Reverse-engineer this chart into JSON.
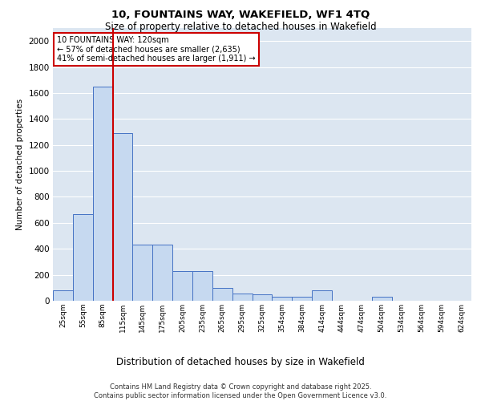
{
  "title_line1": "10, FOUNTAINS WAY, WAKEFIELD, WF1 4TQ",
  "title_line2": "Size of property relative to detached houses in Wakefield",
  "xlabel": "Distribution of detached houses by size in Wakefield",
  "ylabel": "Number of detached properties",
  "categories": [
    "25sqm",
    "55sqm",
    "85sqm",
    "115sqm",
    "145sqm",
    "175sqm",
    "205sqm",
    "235sqm",
    "265sqm",
    "295sqm",
    "325sqm",
    "354sqm",
    "384sqm",
    "414sqm",
    "444sqm",
    "474sqm",
    "504sqm",
    "534sqm",
    "564sqm",
    "594sqm",
    "624sqm"
  ],
  "values": [
    80,
    670,
    1650,
    1290,
    430,
    430,
    230,
    230,
    100,
    55,
    50,
    30,
    30,
    80,
    0,
    0,
    30,
    0,
    0,
    0,
    0
  ],
  "bar_color": "#c6d9f0",
  "bar_edge_color": "#4472c4",
  "grid_color": "#ffffff",
  "bg_color": "#dce6f1",
  "vline_x_index": 3,
  "vline_color": "#cc0000",
  "annotation_text": "10 FOUNTAINS WAY: 120sqm\n← 57% of detached houses are smaller (2,635)\n41% of semi-detached houses are larger (1,911) →",
  "annotation_box_color": "#cc0000",
  "footnote": "Contains HM Land Registry data © Crown copyright and database right 2025.\nContains public sector information licensed under the Open Government Licence v3.0.",
  "ylim": [
    0,
    2100
  ],
  "yticks": [
    0,
    200,
    400,
    600,
    800,
    1000,
    1200,
    1400,
    1600,
    1800,
    2000
  ]
}
